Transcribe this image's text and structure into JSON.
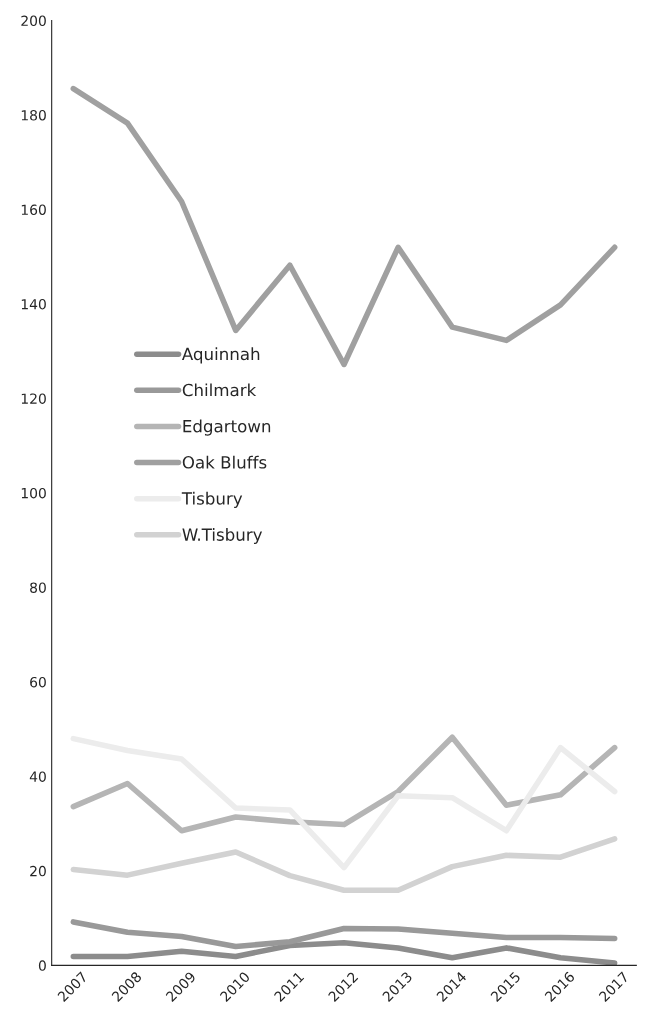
{
  "chart_data": {
    "type": "line",
    "categories": [
      "2007",
      "2008",
      "2009",
      "2010",
      "2011",
      "2012",
      "2013",
      "2014",
      "2015",
      "2016",
      "2017"
    ],
    "series": [
      {
        "name": "Aquinnah",
        "color": "#8c8c8c",
        "values": [
          1.9,
          1.9,
          3,
          1.9,
          4.2,
          4.8,
          3.7,
          1.6,
          3.7,
          1.6,
          0.5
        ]
      },
      {
        "name": "Chilmark",
        "color": "#999999",
        "values": [
          9.2,
          7,
          6.1,
          4,
          5,
          7.8,
          7.7,
          6.8,
          5.9,
          5.9,
          5.7
        ]
      },
      {
        "name": "Edgartown",
        "color": "#b5b5b5",
        "values": [
          33.6,
          38.5,
          28.5,
          31.4,
          30.4,
          29.8,
          36.8,
          48.3,
          33.9,
          36.1,
          46.1
        ]
      },
      {
        "name": "Oak Bluffs",
        "color": "#a0a0a0",
        "values": [
          185.6,
          178.3,
          161.7,
          134.4,
          148.2,
          127.2,
          152,
          135.1,
          132.3,
          139.8,
          152
        ]
      },
      {
        "name": "Tisbury",
        "color": "#ececec",
        "values": [
          48,
          45.5,
          43.7,
          33.3,
          32.9,
          20.7,
          35.9,
          35.5,
          28.5,
          46.1,
          36.8
        ]
      },
      {
        "name": "W.Tisbury",
        "color": "#d2d2d2",
        "values": [
          20.3,
          19.1,
          21.6,
          24,
          19,
          15.9,
          15.9,
          20.9,
          23.3,
          22.9,
          26.8
        ]
      }
    ],
    "ylim": [
      0,
      200
    ],
    "yticks": [
      0,
      20,
      40,
      60,
      80,
      100,
      120,
      140,
      160,
      180,
      200
    ],
    "grid": false,
    "legend": "center left",
    "marker": "none",
    "line_style": "solid"
  }
}
